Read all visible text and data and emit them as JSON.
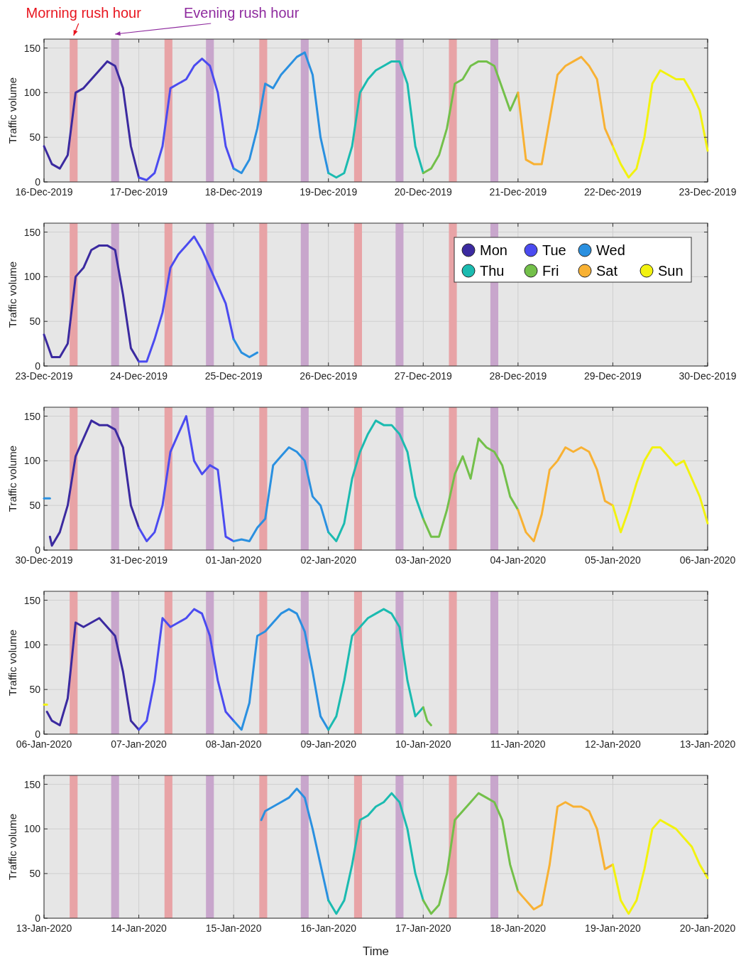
{
  "chart_data": [
    {
      "type": "line",
      "ylabel": "Traffic volume",
      "annotations": [
        "Morning rush hour",
        "Evening rush hour"
      ],
      "xlim": [
        "2019-12-16",
        "2019-12-23"
      ],
      "ylim": [
        0,
        160
      ],
      "yticks": [
        0,
        50,
        100,
        150
      ],
      "grid": true,
      "xticks": [
        {
          "value": "2019-12-16",
          "label": "16-Dec-2019"
        },
        {
          "value": "2019-12-17",
          "label": "17-Dec-2019"
        },
        {
          "value": "2019-12-18",
          "label": "18-Dec-2019"
        },
        {
          "value": "2019-12-19",
          "label": "19-Dec-2019"
        },
        {
          "value": "2019-12-20",
          "label": "20-Dec-2019"
        },
        {
          "value": "2019-12-21",
          "label": "21-Dec-2019"
        },
        {
          "value": "2019-12-22",
          "label": "22-Dec-2019"
        },
        {
          "value": "2019-12-23",
          "label": "23-Dec-2019"
        }
      ],
      "bands": [
        {
          "axis": "x",
          "from": "2019-12-16T06:30",
          "to": "2019-12-16T08:30",
          "color": "#e8a3a6"
        },
        {
          "axis": "x",
          "from": "2019-12-16T17:00",
          "to": "2019-12-16T19:00",
          "color": "#c8a6cc"
        },
        {
          "axis": "x",
          "from": "2019-12-17T06:30",
          "to": "2019-12-17T08:30",
          "color": "#e8a3a6"
        },
        {
          "axis": "x",
          "from": "2019-12-17T17:00",
          "to": "2019-12-17T19:00",
          "color": "#c8a6cc"
        },
        {
          "axis": "x",
          "from": "2019-12-18T06:30",
          "to": "2019-12-18T08:30",
          "color": "#e8a3a6"
        },
        {
          "axis": "x",
          "from": "2019-12-18T17:00",
          "to": "2019-12-18T19:00",
          "color": "#c8a6cc"
        },
        {
          "axis": "x",
          "from": "2019-12-19T06:30",
          "to": "2019-12-19T08:30",
          "color": "#e8a3a6"
        },
        {
          "axis": "x",
          "from": "2019-12-19T17:00",
          "to": "2019-12-19T19:00",
          "color": "#c8a6cc"
        },
        {
          "axis": "x",
          "from": "2019-12-20T06:30",
          "to": "2019-12-20T08:30",
          "color": "#e8a3a6"
        },
        {
          "axis": "x",
          "from": "2019-12-20T17:00",
          "to": "2019-12-20T19:00",
          "color": "#c8a6cc"
        }
      ],
      "series": [
        {
          "color": "#3b2aa0",
          "x": [
            "2019-12-16T00:00",
            "2019-12-16T02:00",
            "2019-12-16T04:00",
            "2019-12-16T06:00",
            "2019-12-16T08:00",
            "2019-12-16T10:00",
            "2019-12-16T12:00",
            "2019-12-16T14:00",
            "2019-12-16T16:00",
            "2019-12-16T18:00",
            "2019-12-16T20:00",
            "2019-12-16T22:00",
            "2019-12-17T00:00"
          ],
          "values": [
            40,
            20,
            15,
            30,
            100,
            105,
            115,
            125,
            135,
            130,
            105,
            40,
            5
          ]
        },
        {
          "color": "#4b4bf0",
          "x": [
            "2019-12-17T00:00",
            "2019-12-17T02:00",
            "2019-12-17T04:00",
            "2019-12-17T06:00",
            "2019-12-17T08:00",
            "2019-12-17T10:00",
            "2019-12-17T12:00",
            "2019-12-17T14:00",
            "2019-12-17T16:00",
            "2019-12-17T18:00",
            "2019-12-17T20:00",
            "2019-12-17T22:00",
            "2019-12-18T00:00"
          ],
          "values": [
            5,
            2,
            10,
            40,
            105,
            110,
            115,
            130,
            138,
            130,
            100,
            40,
            15
          ]
        },
        {
          "color": "#2a90e0",
          "x": [
            "2019-12-18T00:00",
            "2019-12-18T02:00",
            "2019-12-18T04:00",
            "2019-12-18T06:00",
            "2019-12-18T08:00",
            "2019-12-18T10:00",
            "2019-12-18T12:00",
            "2019-12-18T14:00",
            "2019-12-18T16:00",
            "2019-12-18T18:00",
            "2019-12-18T20:00",
            "2019-12-18T22:00",
            "2019-12-19T00:00"
          ],
          "values": [
            15,
            10,
            25,
            60,
            110,
            105,
            120,
            130,
            140,
            145,
            120,
            50,
            10
          ]
        },
        {
          "color": "#1bbbb0",
          "x": [
            "2019-12-19T00:00",
            "2019-12-19T02:00",
            "2019-12-19T04:00",
            "2019-12-19T06:00",
            "2019-12-19T08:00",
            "2019-12-19T10:00",
            "2019-12-19T12:00",
            "2019-12-19T14:00",
            "2019-12-19T16:00",
            "2019-12-19T18:00",
            "2019-12-19T20:00",
            "2019-12-19T22:00",
            "2019-12-20T00:00"
          ],
          "values": [
            10,
            5,
            10,
            40,
            100,
            115,
            125,
            130,
            135,
            135,
            110,
            40,
            10
          ]
        },
        {
          "color": "#73c04a",
          "x": [
            "2019-12-20T00:00",
            "2019-12-20T02:00",
            "2019-12-20T04:00",
            "2019-12-20T06:00",
            "2019-12-20T08:00",
            "2019-12-20T10:00",
            "2019-12-20T12:00",
            "2019-12-20T14:00",
            "2019-12-20T16:00",
            "2019-12-20T18:00",
            "2019-12-20T20:00",
            "2019-12-20T22:00",
            "2019-12-21T00:00"
          ],
          "values": [
            10,
            15,
            30,
            60,
            110,
            115,
            130,
            135,
            135,
            130,
            105,
            80,
            100
          ]
        },
        {
          "color": "#f8b133",
          "x": [
            "2019-12-21T00:00",
            "2019-12-21T02:00",
            "2019-12-21T04:00",
            "2019-12-21T06:00",
            "2019-12-21T08:00",
            "2019-12-21T10:00",
            "2019-12-21T12:00",
            "2019-12-21T14:00",
            "2019-12-21T16:00",
            "2019-12-21T18:00",
            "2019-12-21T20:00",
            "2019-12-21T22:00",
            "2019-12-22T00:00"
          ],
          "values": [
            100,
            25,
            20,
            20,
            70,
            120,
            130,
            135,
            140,
            130,
            115,
            60,
            40
          ]
        },
        {
          "color": "#f2f20f",
          "x": [
            "2019-12-22T00:00",
            "2019-12-22T02:00",
            "2019-12-22T04:00",
            "2019-12-22T06:00",
            "2019-12-22T08:00",
            "2019-12-22T10:00",
            "2019-12-22T12:00",
            "2019-12-22T14:00",
            "2019-12-22T16:00",
            "2019-12-22T18:00",
            "2019-12-22T20:00",
            "2019-12-22T22:00",
            "2019-12-23T00:00"
          ],
          "values": [
            40,
            20,
            5,
            15,
            50,
            110,
            125,
            120,
            115,
            115,
            100,
            80,
            35
          ]
        }
      ]
    },
    {
      "type": "line",
      "ylabel": "Traffic volume",
      "xlim": [
        "2019-12-23",
        "2019-12-30"
      ],
      "ylim": [
        0,
        160
      ],
      "yticks": [
        0,
        50,
        100,
        150
      ],
      "grid": true,
      "legend": "top right",
      "xticks": [
        {
          "value": "2019-12-23",
          "label": "23-Dec-2019"
        },
        {
          "value": "2019-12-24",
          "label": "24-Dec-2019"
        },
        {
          "value": "2019-12-25",
          "label": "25-Dec-2019"
        },
        {
          "value": "2019-12-26",
          "label": "26-Dec-2019"
        },
        {
          "value": "2019-12-27",
          "label": "27-Dec-2019"
        },
        {
          "value": "2019-12-28",
          "label": "28-Dec-2019"
        },
        {
          "value": "2019-12-29",
          "label": "29-Dec-2019"
        },
        {
          "value": "2019-12-30",
          "label": "30-Dec-2019"
        }
      ],
      "bands": [
        {
          "axis": "x",
          "from": "2019-12-23T06:30",
          "to": "2019-12-23T08:30",
          "color": "#e8a3a6"
        },
        {
          "axis": "x",
          "from": "2019-12-23T17:00",
          "to": "2019-12-23T19:00",
          "color": "#c8a6cc"
        },
        {
          "axis": "x",
          "from": "2019-12-24T06:30",
          "to": "2019-12-24T08:30",
          "color": "#e8a3a6"
        },
        {
          "axis": "x",
          "from": "2019-12-24T17:00",
          "to": "2019-12-24T19:00",
          "color": "#c8a6cc"
        },
        {
          "axis": "x",
          "from": "2019-12-25T06:30",
          "to": "2019-12-25T08:30",
          "color": "#e8a3a6"
        },
        {
          "axis": "x",
          "from": "2019-12-25T17:00",
          "to": "2019-12-25T19:00",
          "color": "#c8a6cc"
        },
        {
          "axis": "x",
          "from": "2019-12-26T06:30",
          "to": "2019-12-26T08:30",
          "color": "#e8a3a6"
        },
        {
          "axis": "x",
          "from": "2019-12-26T17:00",
          "to": "2019-12-26T19:00",
          "color": "#c8a6cc"
        },
        {
          "axis": "x",
          "from": "2019-12-27T06:30",
          "to": "2019-12-27T08:30",
          "color": "#e8a3a6"
        },
        {
          "axis": "x",
          "from": "2019-12-27T17:00",
          "to": "2019-12-27T19:00",
          "color": "#c8a6cc"
        }
      ],
      "series": [
        {
          "name": "Mon",
          "color": "#3b2aa0",
          "x": [
            "2019-12-23T00:00",
            "2019-12-23T02:00",
            "2019-12-23T04:00",
            "2019-12-23T06:00",
            "2019-12-23T08:00",
            "2019-12-23T10:00",
            "2019-12-23T12:00",
            "2019-12-23T14:00",
            "2019-12-23T16:00",
            "2019-12-23T18:00",
            "2019-12-23T20:00",
            "2019-12-23T22:00",
            "2019-12-24T00:00"
          ],
          "values": [
            35,
            10,
            10,
            25,
            100,
            110,
            130,
            135,
            135,
            130,
            80,
            20,
            5
          ]
        },
        {
          "name": "Tue",
          "color": "#4b4bf0",
          "x": [
            "2019-12-24T00:00",
            "2019-12-24T02:00",
            "2019-12-24T04:00",
            "2019-12-24T06:00",
            "2019-12-24T08:00",
            "2019-12-24T10:00",
            "2019-12-24T12:00",
            "2019-12-24T14:00",
            "2019-12-24T16:00",
            "2019-12-24T18:00",
            "2019-12-24T20:00",
            "2019-12-24T22:00",
            "2019-12-25T00:00"
          ],
          "values": [
            5,
            5,
            30,
            60,
            110,
            125,
            135,
            145,
            130,
            110,
            90,
            70,
            30
          ]
        },
        {
          "name": "Wed",
          "color": "#2a90e0",
          "x": [
            "2019-12-25T00:00",
            "2019-12-25T02:00",
            "2019-12-25T04:00",
            "2019-12-25T06:00"
          ],
          "values": [
            30,
            15,
            10,
            15
          ]
        },
        {
          "name": "Thu",
          "color": "#1bbbb0"
        },
        {
          "name": "Fri",
          "color": "#73c04a"
        },
        {
          "name": "Sat",
          "color": "#f8b133"
        },
        {
          "name": "Sun",
          "color": "#f2f20f"
        }
      ]
    },
    {
      "type": "line",
      "ylabel": "Traffic volume",
      "xlim": [
        "2019-12-30",
        "2020-01-06"
      ],
      "ylim": [
        0,
        160
      ],
      "yticks": [
        0,
        50,
        100,
        150
      ],
      "grid": true,
      "xticks": [
        {
          "value": "2019-12-30",
          "label": "30-Dec-2019"
        },
        {
          "value": "2019-12-31",
          "label": "31-Dec-2019"
        },
        {
          "value": "2020-01-01",
          "label": "01-Jan-2020"
        },
        {
          "value": "2020-01-02",
          "label": "02-Jan-2020"
        },
        {
          "value": "2020-01-03",
          "label": "03-Jan-2020"
        },
        {
          "value": "2020-01-04",
          "label": "04-Jan-2020"
        },
        {
          "value": "2020-01-05",
          "label": "05-Jan-2020"
        },
        {
          "value": "2020-01-06",
          "label": "06-Jan-2020"
        }
      ],
      "bands": [
        {
          "axis": "x",
          "from": "2019-12-30T06:30",
          "to": "2019-12-30T08:30",
          "color": "#e8a3a6"
        },
        {
          "axis": "x",
          "from": "2019-12-30T17:00",
          "to": "2019-12-30T19:00",
          "color": "#c8a6cc"
        },
        {
          "axis": "x",
          "from": "2019-12-31T06:30",
          "to": "2019-12-31T08:30",
          "color": "#e8a3a6"
        },
        {
          "axis": "x",
          "from": "2019-12-31T17:00",
          "to": "2019-12-31T19:00",
          "color": "#c8a6cc"
        },
        {
          "axis": "x",
          "from": "2020-01-01T06:30",
          "to": "2020-01-01T08:30",
          "color": "#e8a3a6"
        },
        {
          "axis": "x",
          "from": "2020-01-01T17:00",
          "to": "2020-01-01T19:00",
          "color": "#c8a6cc"
        },
        {
          "axis": "x",
          "from": "2020-01-02T06:30",
          "to": "2020-01-02T08:30",
          "color": "#e8a3a6"
        },
        {
          "axis": "x",
          "from": "2020-01-02T17:00",
          "to": "2020-01-02T19:00",
          "color": "#c8a6cc"
        },
        {
          "axis": "x",
          "from": "2020-01-03T06:30",
          "to": "2020-01-03T08:30",
          "color": "#e8a3a6"
        },
        {
          "axis": "x",
          "from": "2020-01-03T17:00",
          "to": "2020-01-03T19:00",
          "color": "#c8a6cc"
        }
      ],
      "series": [
        {
          "color": "#3b2aa0",
          "x": [
            "2019-12-30T01:30",
            "2019-12-30T02:00",
            "2019-12-30T04:00",
            "2019-12-30T06:00",
            "2019-12-30T08:00",
            "2019-12-30T10:00",
            "2019-12-30T12:00",
            "2019-12-30T14:00",
            "2019-12-30T16:00",
            "2019-12-30T18:00",
            "2019-12-30T20:00",
            "2019-12-30T22:00",
            "2019-12-31T00:00"
          ],
          "values": [
            15,
            5,
            20,
            50,
            105,
            125,
            145,
            140,
            140,
            135,
            115,
            50,
            25
          ]
        },
        {
          "color": "#4b4bf0",
          "x": [
            "2019-12-31T00:00",
            "2019-12-31T02:00",
            "2019-12-31T04:00",
            "2019-12-31T06:00",
            "2019-12-31T08:00",
            "2019-12-31T10:00",
            "2019-12-31T12:00",
            "2019-12-31T14:00",
            "2019-12-31T16:00",
            "2019-12-31T18:00",
            "2019-12-31T20:00",
            "2019-12-31T22:00",
            "2020-01-01T00:00"
          ],
          "values": [
            25,
            10,
            20,
            50,
            110,
            130,
            150,
            100,
            85,
            95,
            90,
            15,
            10
          ]
        },
        {
          "color": "#2a90e0",
          "x": [
            "2019-12-30T00:00",
            "2019-12-30T01:30"
          ],
          "values": [
            58,
            58
          ]
        },
        {
          "color": "#2a90e0",
          "x": [
            "2020-01-01T00:00",
            "2020-01-01T02:00",
            "2020-01-01T04:00",
            "2020-01-01T06:00",
            "2020-01-01T08:00",
            "2020-01-01T10:00",
            "2020-01-01T12:00",
            "2020-01-01T14:00",
            "2020-01-01T16:00",
            "2020-01-01T18:00",
            "2020-01-01T20:00",
            "2020-01-01T22:00",
            "2020-01-02T00:00"
          ],
          "values": [
            10,
            12,
            10,
            25,
            35,
            95,
            105,
            115,
            110,
            100,
            60,
            50,
            20
          ]
        },
        {
          "color": "#1bbbb0",
          "x": [
            "2020-01-02T00:00",
            "2020-01-02T02:00",
            "2020-01-02T04:00",
            "2020-01-02T06:00",
            "2020-01-02T08:00",
            "2020-01-02T10:00",
            "2020-01-02T12:00",
            "2020-01-02T14:00",
            "2020-01-02T16:00",
            "2020-01-02T18:00",
            "2020-01-02T20:00",
            "2020-01-02T22:00",
            "2020-01-03T00:00"
          ],
          "values": [
            20,
            10,
            30,
            80,
            110,
            130,
            145,
            140,
            140,
            130,
            110,
            60,
            35
          ]
        },
        {
          "color": "#73c04a",
          "x": [
            "2020-01-03T00:00",
            "2020-01-03T02:00",
            "2020-01-03T04:00",
            "2020-01-03T06:00",
            "2020-01-03T08:00",
            "2020-01-03T10:00",
            "2020-01-03T12:00",
            "2020-01-03T14:00",
            "2020-01-03T16:00",
            "2020-01-03T18:00",
            "2020-01-03T20:00",
            "2020-01-03T22:00",
            "2020-01-04T00:00"
          ],
          "values": [
            35,
            15,
            15,
            45,
            85,
            105,
            80,
            125,
            115,
            110,
            95,
            60,
            45
          ]
        },
        {
          "color": "#f8b133",
          "x": [
            "2020-01-04T00:00",
            "2020-01-04T02:00",
            "2020-01-04T04:00",
            "2020-01-04T06:00",
            "2020-01-04T08:00",
            "2020-01-04T10:00",
            "2020-01-04T12:00",
            "2020-01-04T14:00",
            "2020-01-04T16:00",
            "2020-01-04T18:00",
            "2020-01-04T20:00",
            "2020-01-04T22:00",
            "2020-01-05T00:00"
          ],
          "values": [
            45,
            20,
            10,
            40,
            90,
            100,
            115,
            110,
            115,
            110,
            90,
            55,
            50
          ]
        },
        {
          "color": "#f2f20f",
          "x": [
            "2020-01-05T00:00",
            "2020-01-05T02:00",
            "2020-01-05T04:00",
            "2020-01-05T06:00",
            "2020-01-05T08:00",
            "2020-01-05T10:00",
            "2020-01-05T12:00",
            "2020-01-05T14:00",
            "2020-01-05T16:00",
            "2020-01-05T18:00",
            "2020-01-05T20:00",
            "2020-01-05T22:00",
            "2020-01-06T00:00"
          ],
          "values": [
            50,
            20,
            45,
            75,
            100,
            115,
            115,
            105,
            95,
            100,
            80,
            60,
            30
          ]
        }
      ]
    },
    {
      "type": "line",
      "ylabel": "Traffic volume",
      "xlim": [
        "2020-01-06",
        "2020-01-13"
      ],
      "ylim": [
        0,
        160
      ],
      "yticks": [
        0,
        50,
        100,
        150
      ],
      "grid": true,
      "xticks": [
        {
          "value": "2020-01-06",
          "label": "06-Jan-2020"
        },
        {
          "value": "2020-01-07",
          "label": "07-Jan-2020"
        },
        {
          "value": "2020-01-08",
          "label": "08-Jan-2020"
        },
        {
          "value": "2020-01-09",
          "label": "09-Jan-2020"
        },
        {
          "value": "2020-01-10",
          "label": "10-Jan-2020"
        },
        {
          "value": "2020-01-11",
          "label": "11-Jan-2020"
        },
        {
          "value": "2020-01-12",
          "label": "12-Jan-2020"
        },
        {
          "value": "2020-01-13",
          "label": "13-Jan-2020"
        }
      ],
      "bands": [
        {
          "axis": "x",
          "from": "2020-01-06T06:30",
          "to": "2020-01-06T08:30",
          "color": "#e8a3a6"
        },
        {
          "axis": "x",
          "from": "2020-01-06T17:00",
          "to": "2020-01-06T19:00",
          "color": "#c8a6cc"
        },
        {
          "axis": "x",
          "from": "2020-01-07T06:30",
          "to": "2020-01-07T08:30",
          "color": "#e8a3a6"
        },
        {
          "axis": "x",
          "from": "2020-01-07T17:00",
          "to": "2020-01-07T19:00",
          "color": "#c8a6cc"
        },
        {
          "axis": "x",
          "from": "2020-01-08T06:30",
          "to": "2020-01-08T08:30",
          "color": "#e8a3a6"
        },
        {
          "axis": "x",
          "from": "2020-01-08T17:00",
          "to": "2020-01-08T19:00",
          "color": "#c8a6cc"
        },
        {
          "axis": "x",
          "from": "2020-01-09T06:30",
          "to": "2020-01-09T08:30",
          "color": "#e8a3a6"
        },
        {
          "axis": "x",
          "from": "2020-01-09T17:00",
          "to": "2020-01-09T19:00",
          "color": "#c8a6cc"
        },
        {
          "axis": "x",
          "from": "2020-01-10T06:30",
          "to": "2020-01-10T08:30",
          "color": "#e8a3a6"
        },
        {
          "axis": "x",
          "from": "2020-01-10T17:00",
          "to": "2020-01-10T19:00",
          "color": "#c8a6cc"
        }
      ],
      "series": [
        {
          "color": "#f2f20f",
          "x": [
            "2020-01-06T00:00",
            "2020-01-06T00:45"
          ],
          "values": [
            33,
            33
          ]
        },
        {
          "color": "#3b2aa0",
          "x": [
            "2020-01-06T00:45",
            "2020-01-06T02:00",
            "2020-01-06T04:00",
            "2020-01-06T06:00",
            "2020-01-06T08:00",
            "2020-01-06T10:00",
            "2020-01-06T12:00",
            "2020-01-06T14:00",
            "2020-01-06T16:00",
            "2020-01-06T18:00",
            "2020-01-06T20:00",
            "2020-01-06T22:00",
            "2020-01-07T00:00"
          ],
          "values": [
            25,
            15,
            10,
            40,
            125,
            120,
            125,
            130,
            120,
            110,
            70,
            15,
            5
          ]
        },
        {
          "color": "#4b4bf0",
          "x": [
            "2020-01-07T00:00",
            "2020-01-07T02:00",
            "2020-01-07T04:00",
            "2020-01-07T06:00",
            "2020-01-07T08:00",
            "2020-01-07T10:00",
            "2020-01-07T12:00",
            "2020-01-07T14:00",
            "2020-01-07T16:00",
            "2020-01-07T18:00",
            "2020-01-07T20:00",
            "2020-01-07T22:00",
            "2020-01-08T00:00"
          ],
          "values": [
            5,
            15,
            60,
            130,
            120,
            125,
            130,
            140,
            135,
            110,
            60,
            25,
            15
          ]
        },
        {
          "color": "#2a90e0",
          "x": [
            "2020-01-08T00:00",
            "2020-01-08T02:00",
            "2020-01-08T04:00",
            "2020-01-08T06:00",
            "2020-01-08T08:00",
            "2020-01-08T10:00",
            "2020-01-08T12:00",
            "2020-01-08T14:00",
            "2020-01-08T16:00",
            "2020-01-08T18:00",
            "2020-01-08T20:00",
            "2020-01-08T22:00",
            "2020-01-09T00:00"
          ],
          "values": [
            15,
            5,
            35,
            110,
            115,
            125,
            135,
            140,
            135,
            115,
            70,
            20,
            5
          ]
        },
        {
          "color": "#1bbbb0",
          "x": [
            "2020-01-09T00:00",
            "2020-01-09T02:00",
            "2020-01-09T04:00",
            "2020-01-09T06:00",
            "2020-01-09T08:00",
            "2020-01-09T10:00",
            "2020-01-09T12:00",
            "2020-01-09T14:00",
            "2020-01-09T16:00",
            "2020-01-09T18:00",
            "2020-01-09T20:00",
            "2020-01-09T22:00",
            "2020-01-10T00:00"
          ],
          "values": [
            5,
            20,
            60,
            110,
            120,
            130,
            135,
            140,
            135,
            120,
            60,
            20,
            30
          ]
        },
        {
          "color": "#73c04a",
          "x": [
            "2020-01-10T00:00",
            "2020-01-10T01:00",
            "2020-01-10T02:00"
          ],
          "values": [
            30,
            15,
            10
          ]
        }
      ]
    },
    {
      "type": "line",
      "ylabel": "Traffic volume",
      "xlabel": "Time",
      "xlim": [
        "2020-01-13",
        "2020-01-20"
      ],
      "ylim": [
        0,
        160
      ],
      "yticks": [
        0,
        50,
        100,
        150
      ],
      "grid": true,
      "xticks": [
        {
          "value": "2020-01-13",
          "label": "13-Jan-2020"
        },
        {
          "value": "2020-01-14",
          "label": "14-Jan-2020"
        },
        {
          "value": "2020-01-15",
          "label": "15-Jan-2020"
        },
        {
          "value": "2020-01-16",
          "label": "16-Jan-2020"
        },
        {
          "value": "2020-01-17",
          "label": "17-Jan-2020"
        },
        {
          "value": "2020-01-18",
          "label": "18-Jan-2020"
        },
        {
          "value": "2020-01-19",
          "label": "19-Jan-2020"
        },
        {
          "value": "2020-01-20",
          "label": "20-Jan-2020"
        }
      ],
      "bands": [
        {
          "axis": "x",
          "from": "2020-01-13T06:30",
          "to": "2020-01-13T08:30",
          "color": "#e8a3a6"
        },
        {
          "axis": "x",
          "from": "2020-01-13T17:00",
          "to": "2020-01-13T19:00",
          "color": "#c8a6cc"
        },
        {
          "axis": "x",
          "from": "2020-01-14T06:30",
          "to": "2020-01-14T08:30",
          "color": "#e8a3a6"
        },
        {
          "axis": "x",
          "from": "2020-01-14T17:00",
          "to": "2020-01-14T19:00",
          "color": "#c8a6cc"
        },
        {
          "axis": "x",
          "from": "2020-01-15T06:30",
          "to": "2020-01-15T08:30",
          "color": "#e8a3a6"
        },
        {
          "axis": "x",
          "from": "2020-01-15T17:00",
          "to": "2020-01-15T19:00",
          "color": "#c8a6cc"
        },
        {
          "axis": "x",
          "from": "2020-01-16T06:30",
          "to": "2020-01-16T08:30",
          "color": "#e8a3a6"
        },
        {
          "axis": "x",
          "from": "2020-01-16T17:00",
          "to": "2020-01-16T19:00",
          "color": "#c8a6cc"
        },
        {
          "axis": "x",
          "from": "2020-01-17T06:30",
          "to": "2020-01-17T08:30",
          "color": "#e8a3a6"
        },
        {
          "axis": "x",
          "from": "2020-01-17T17:00",
          "to": "2020-01-17T19:00",
          "color": "#c8a6cc"
        }
      ],
      "series": [
        {
          "color": "#2a90e0",
          "x": [
            "2020-01-15T07:00",
            "2020-01-15T08:00",
            "2020-01-15T10:00",
            "2020-01-15T12:00",
            "2020-01-15T14:00",
            "2020-01-15T16:00",
            "2020-01-15T18:00",
            "2020-01-15T20:00",
            "2020-01-15T22:00",
            "2020-01-16T00:00"
          ],
          "values": [
            110,
            120,
            125,
            130,
            135,
            145,
            135,
            100,
            60,
            20
          ]
        },
        {
          "color": "#1bbbb0",
          "x": [
            "2020-01-16T00:00",
            "2020-01-16T02:00",
            "2020-01-16T04:00",
            "2020-01-16T06:00",
            "2020-01-16T08:00",
            "2020-01-16T10:00",
            "2020-01-16T12:00",
            "2020-01-16T14:00",
            "2020-01-16T16:00",
            "2020-01-16T18:00",
            "2020-01-16T20:00",
            "2020-01-16T22:00",
            "2020-01-17T00:00"
          ],
          "values": [
            20,
            5,
            20,
            60,
            110,
            115,
            125,
            130,
            140,
            130,
            100,
            50,
            20
          ]
        },
        {
          "color": "#73c04a",
          "x": [
            "2020-01-17T00:00",
            "2020-01-17T02:00",
            "2020-01-17T04:00",
            "2020-01-17T06:00",
            "2020-01-17T08:00",
            "2020-01-17T10:00",
            "2020-01-17T12:00",
            "2020-01-17T14:00",
            "2020-01-17T16:00",
            "2020-01-17T18:00",
            "2020-01-17T20:00",
            "2020-01-17T22:00",
            "2020-01-18T00:00"
          ],
          "values": [
            20,
            5,
            15,
            50,
            110,
            120,
            130,
            140,
            135,
            130,
            110,
            60,
            30
          ]
        },
        {
          "color": "#f8b133",
          "x": [
            "2020-01-18T00:00",
            "2020-01-18T02:00",
            "2020-01-18T04:00",
            "2020-01-18T06:00",
            "2020-01-18T08:00",
            "2020-01-18T10:00",
            "2020-01-18T12:00",
            "2020-01-18T14:00",
            "2020-01-18T16:00",
            "2020-01-18T18:00",
            "2020-01-18T20:00",
            "2020-01-18T22:00",
            "2020-01-19T00:00"
          ],
          "values": [
            30,
            20,
            10,
            15,
            60,
            125,
            130,
            125,
            125,
            120,
            100,
            55,
            60
          ]
        },
        {
          "color": "#f2f20f",
          "x": [
            "2020-01-19T00:00",
            "2020-01-19T02:00",
            "2020-01-19T04:00",
            "2020-01-19T06:00",
            "2020-01-19T08:00",
            "2020-01-19T10:00",
            "2020-01-19T12:00",
            "2020-01-19T14:00",
            "2020-01-19T16:00",
            "2020-01-19T18:00",
            "2020-01-19T20:00",
            "2020-01-19T22:00",
            "2020-01-20T00:00"
          ],
          "values": [
            60,
            20,
            5,
            20,
            55,
            100,
            110,
            105,
            100,
            90,
            80,
            60,
            45
          ]
        }
      ]
    }
  ]
}
